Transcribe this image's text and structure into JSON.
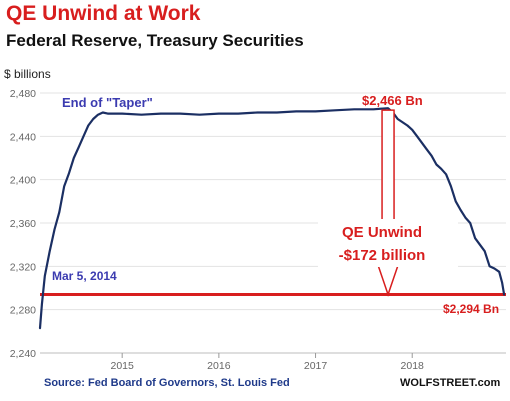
{
  "header": {
    "title": "QE Unwind at Work",
    "subtitle": "Federal Reserve, Treasury Securities",
    "units": "$ billions"
  },
  "footer": {
    "source": "Source: Fed Board of Governors, St. Louis Fed",
    "brand": "WOLFSTREET.com"
  },
  "colors": {
    "line": "#1b2f63",
    "accent": "#d81e1e",
    "note_blue": "#3b3bb0",
    "grid": "#e3e3e3",
    "tick": "#666666"
  },
  "chart_data": {
    "type": "line",
    "title": "QE Unwind at Work",
    "subtitle": "Federal Reserve, Treasury Securities",
    "ylabel": "$ billions",
    "xlabel": "",
    "ylim": [
      2240,
      2480
    ],
    "xlim": [
      2014.15,
      2018.97
    ],
    "yticks": [
      2240,
      2280,
      2320,
      2360,
      2400,
      2440,
      2480
    ],
    "yticklabels": [
      "2,240",
      "2,280",
      "2,320",
      "2,360",
      "2,400",
      "2,440",
      "2,480"
    ],
    "xticks": [
      2015,
      2016,
      2017,
      2018
    ],
    "xticklabels": [
      "2015",
      "2016",
      "2017",
      "2018"
    ],
    "grid": true,
    "series": [
      {
        "x": [
          2014.15,
          2014.17,
          2014.2,
          2014.25,
          2014.3,
          2014.35,
          2014.4,
          2014.45,
          2014.5,
          2014.55,
          2014.6,
          2014.65,
          2014.7,
          2014.75,
          2014.8,
          2014.85,
          2015.0,
          2015.2,
          2015.4,
          2015.6,
          2015.8,
          2016.0,
          2016.2,
          2016.4,
          2016.6,
          2016.8,
          2017.0,
          2017.2,
          2017.4,
          2017.6,
          2017.75,
          2017.8,
          2017.85,
          2017.95,
          2018.0,
          2018.05,
          2018.1,
          2018.15,
          2018.2,
          2018.25,
          2018.3,
          2018.35,
          2018.4,
          2018.45,
          2018.5,
          2018.55,
          2018.6,
          2018.65,
          2018.7,
          2018.75,
          2018.8,
          2018.85,
          2018.9,
          2018.93,
          2018.95
        ],
        "values": [
          2263,
          2285,
          2311,
          2334,
          2354,
          2370,
          2394,
          2406,
          2420,
          2430,
          2440,
          2450,
          2456,
          2460,
          2462,
          2461,
          2461,
          2460,
          2461,
          2461,
          2460,
          2461,
          2461,
          2462,
          2462,
          2463,
          2463,
          2464,
          2465,
          2465,
          2466,
          2462,
          2456,
          2450,
          2446,
          2440,
          2434,
          2428,
          2422,
          2414,
          2410,
          2405,
          2394,
          2380,
          2372,
          2365,
          2360,
          2346,
          2340,
          2334,
          2320,
          2318,
          2315,
          2305,
          2294
        ]
      }
    ],
    "reference_line": 2294,
    "annotations": {
      "taper": "End of \"Taper\"",
      "peak": "$2,466 Bn",
      "unwind_1": "QE Unwind",
      "unwind_2": "-$172 billion",
      "start": "Mar 5, 2014",
      "end": "$2,294 Bn"
    }
  }
}
